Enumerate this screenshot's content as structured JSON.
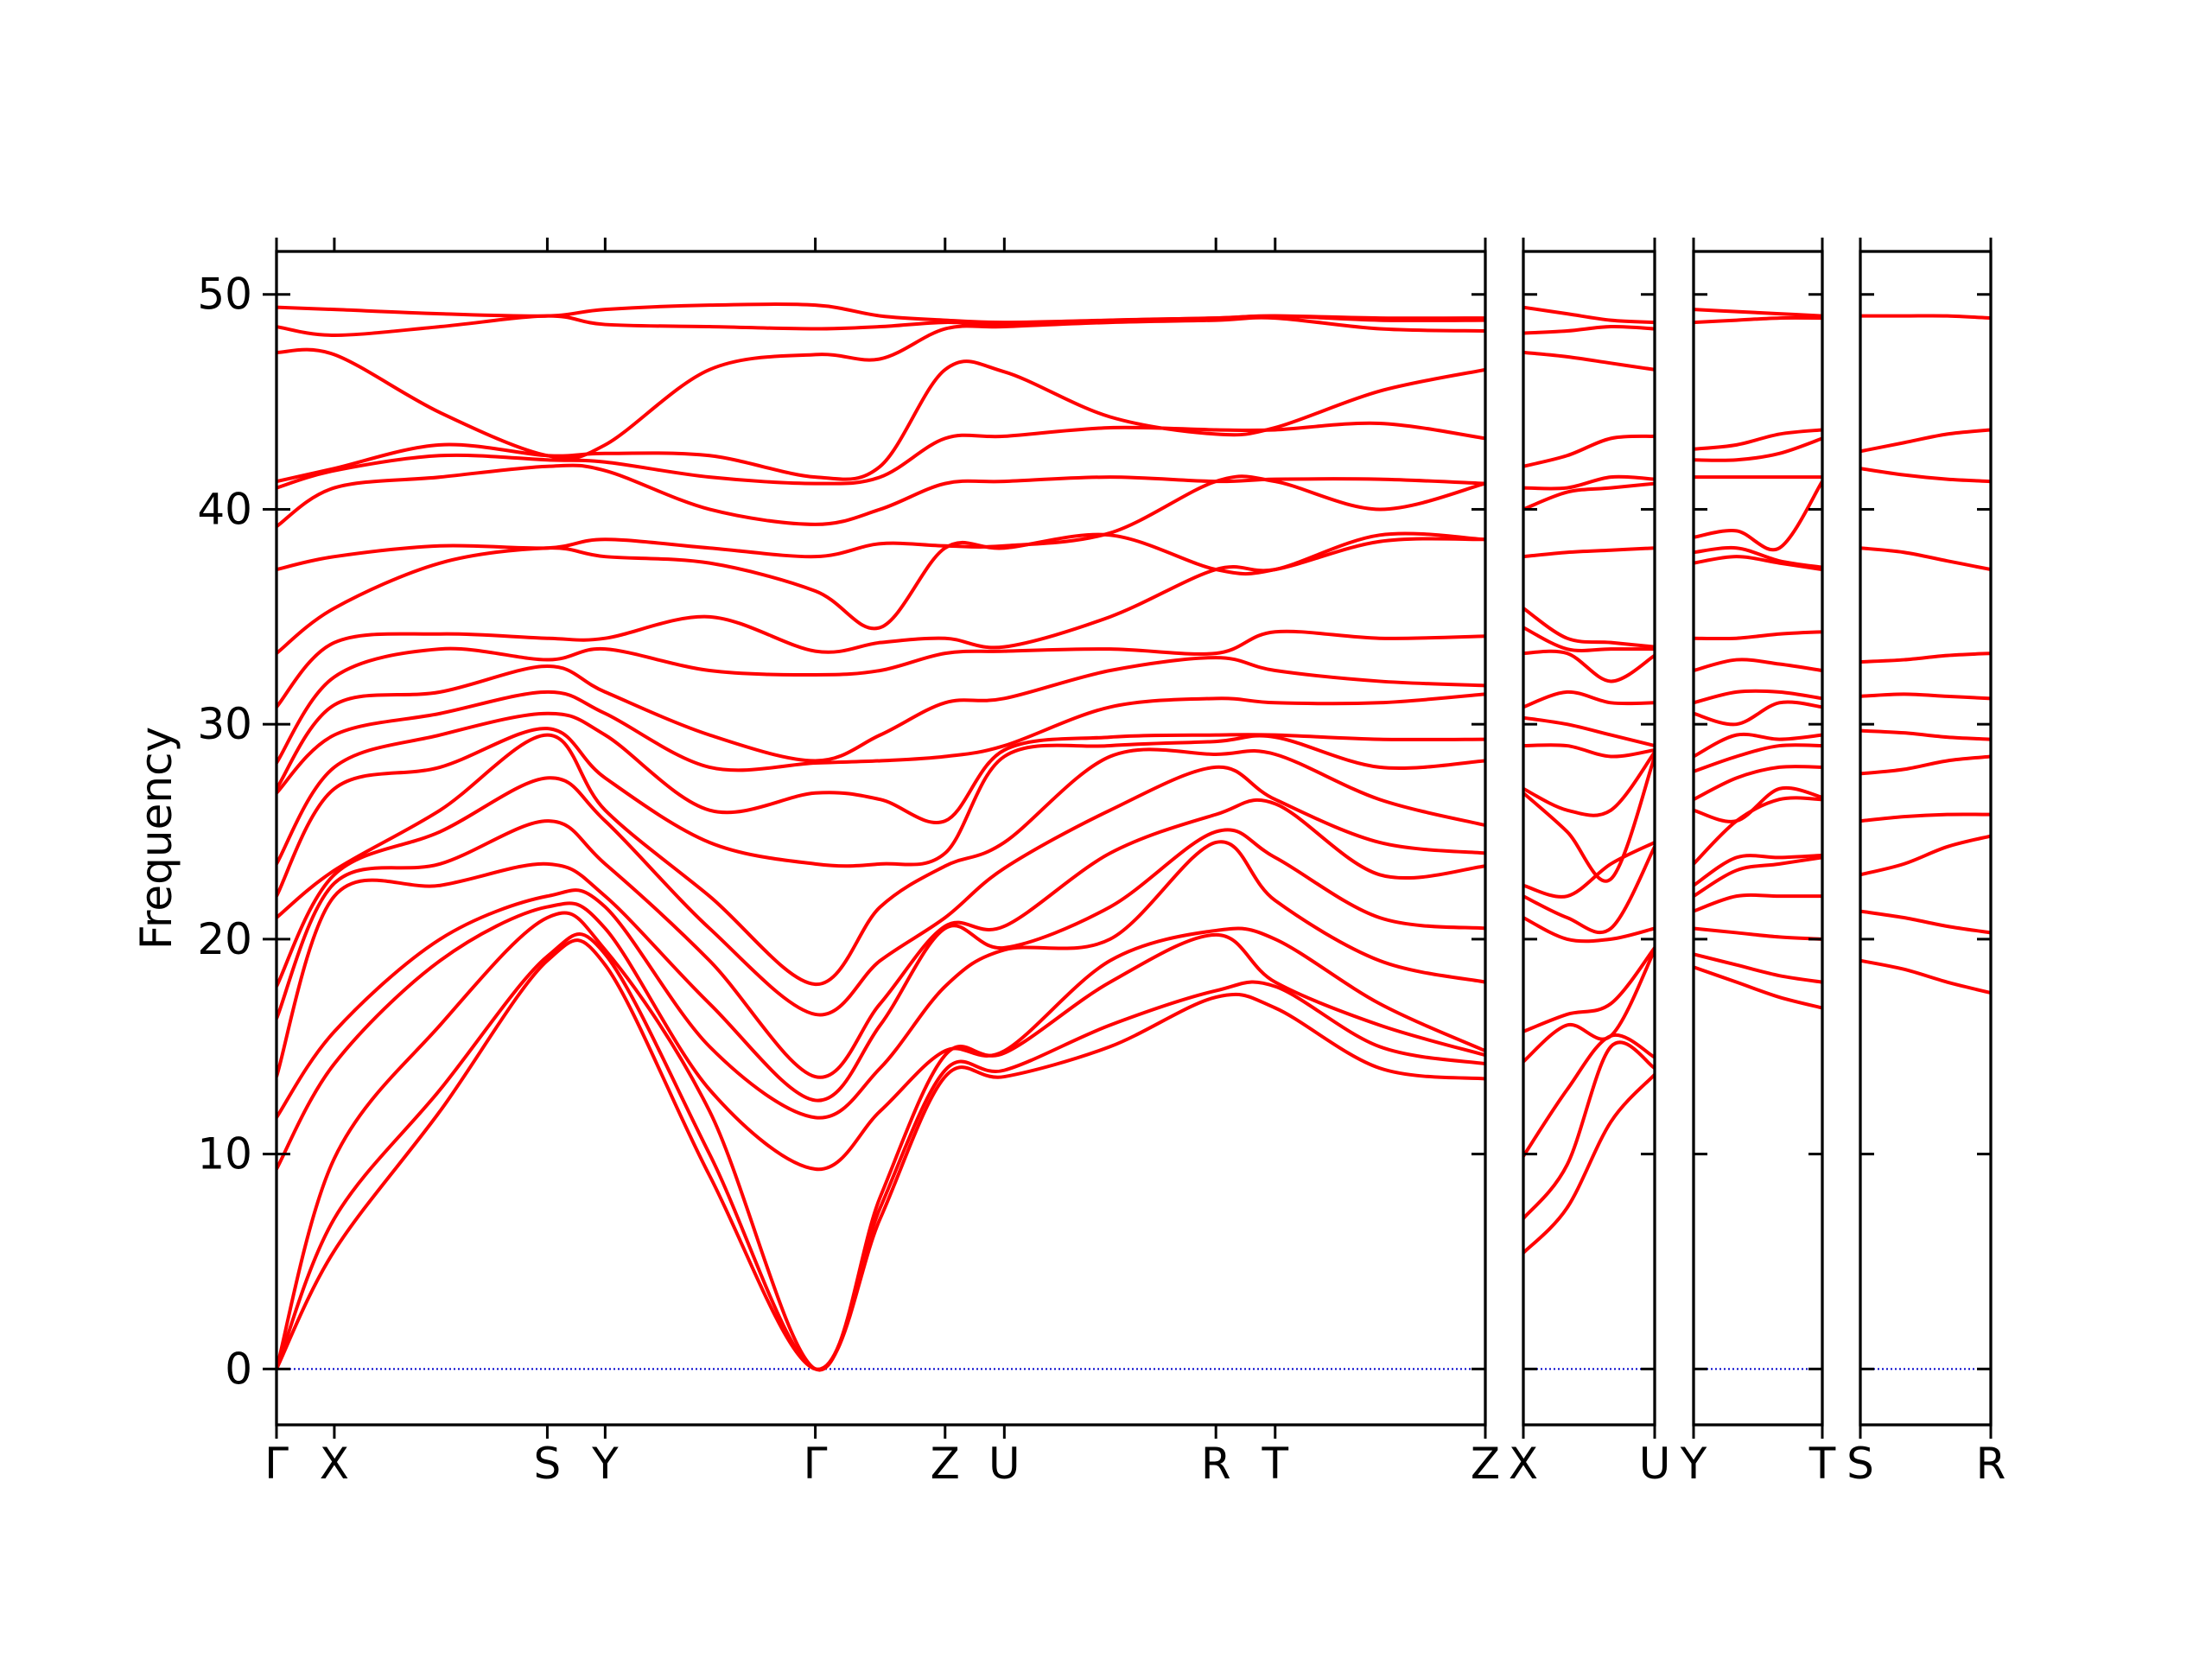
{
  "chart_data": [
    {
      "type": "line",
      "ylabel": "Frequency",
      "color": "#ff0000",
      "show_ytick_labels": true,
      "xlim": [
        0,
        8.57
      ],
      "ylim": [
        -2.6,
        52
      ],
      "yticks": [
        0,
        10,
        20,
        30,
        40,
        50
      ],
      "xticks": [
        {
          "value": 0,
          "label": "Γ"
        },
        {
          "value": 0.41,
          "label": "X"
        },
        {
          "value": 1.92,
          "label": "S"
        },
        {
          "value": 2.33,
          "label": "Y"
        },
        {
          "value": 3.82,
          "label": "Γ"
        },
        {
          "value": 4.74,
          "label": "Z"
        },
        {
          "value": 5.16,
          "label": "U"
        },
        {
          "value": 6.66,
          "label": "R"
        },
        {
          "value": 7.08,
          "label": "T"
        },
        {
          "value": 8.57,
          "label": "Z"
        }
      ],
      "hline": {
        "value": 0,
        "color": "#0000cc"
      },
      "x": [
        0,
        0.41,
        1.16,
        1.92,
        2.33,
        3.07,
        3.82,
        4.28,
        4.74,
        5.16,
        5.91,
        6.66,
        7.08,
        7.82,
        8.57
      ],
      "series": [
        {
          "values": [
            0,
            5.5,
            12,
            19,
            18.8,
            9,
            0,
            7,
            13.6,
            13.6,
            15,
            17.3,
            16.8,
            14,
            13.5
          ]
        },
        {
          "values": [
            0,
            7.0,
            13,
            19.2,
            19.3,
            10,
            0,
            7.5,
            13.9,
            13.9,
            16,
            17.6,
            17.8,
            15,
            14.2
          ]
        },
        {
          "values": [
            0,
            9.8,
            16,
            21,
            19.5,
            12,
            0,
            8,
            14.6,
            14.7,
            18,
            20.2,
            18,
            16,
            14.6
          ]
        },
        {
          "values": [
            9.3,
            14.2,
            19,
            21.5,
            20.5,
            13,
            9.3,
            12,
            14.8,
            14.8,
            19,
            20.4,
            20,
            17,
            14.8
          ]
        },
        {
          "values": [
            11.7,
            15.7,
            20,
            22,
            21.5,
            15,
            11.7,
            14,
            17.8,
            19.5,
            20,
            24.5,
            21.8,
            19,
            18
          ]
        },
        {
          "values": [
            13.6,
            22,
            22.5,
            23.5,
            22,
            17,
            12.5,
            16,
            20.5,
            19.6,
            21.5,
            25,
            23.8,
            21,
            20.5
          ]
        },
        {
          "values": [
            16.3,
            22.6,
            23.5,
            25.5,
            23.5,
            19,
            13.6,
            17,
            20.6,
            20.6,
            24,
            25.8,
            26.3,
            23,
            23.4
          ]
        },
        {
          "values": [
            17.8,
            23.0,
            25,
            27.5,
            25.5,
            20.5,
            16.5,
            19,
            21,
            23.3,
            26,
            28,
            26.5,
            24.5,
            24
          ]
        },
        {
          "values": [
            21,
            23.2,
            26,
            29.5,
            26,
            22,
            17.9,
            21.5,
            23.4,
            24.5,
            28.5,
            28.6,
            28.6,
            26.5,
            25.3
          ]
        },
        {
          "values": [
            22,
            27,
            28,
            29.8,
            27.5,
            24.5,
            23.5,
            23.5,
            24,
            28.5,
            29,
            29.2,
            29.4,
            28,
            28.3
          ]
        },
        {
          "values": [
            23.5,
            28,
            29.5,
            30.5,
            29.5,
            26,
            26.8,
            26.5,
            25.5,
            28.8,
            29.4,
            29.5,
            29.5,
            29.3,
            29.3
          ]
        },
        {
          "values": [
            26.8,
            29.5,
            30.5,
            31.5,
            30.5,
            28,
            28.2,
            28.3,
            28.5,
            29,
            30.8,
            31.2,
            31,
            31,
            31.4
          ]
        },
        {
          "values": [
            27.0,
            30.9,
            31.5,
            32.7,
            31.5,
            29.5,
            28.3,
            29.5,
            31,
            31.2,
            32.5,
            33.1,
            32.5,
            32,
            31.8
          ]
        },
        {
          "values": [
            28.2,
            32.2,
            33.5,
            33,
            33.5,
            32.5,
            32.3,
            32.5,
            33.3,
            33.4,
            33.5,
            33.3,
            34.3,
            34,
            34.1
          ]
        },
        {
          "values": [
            30.8,
            33.8,
            34.2,
            34,
            34,
            35,
            33.4,
            33.8,
            34,
            33.6,
            35,
            37.2,
            37.2,
            38.5,
            38.6
          ]
        },
        {
          "values": [
            33.3,
            35.4,
            37.5,
            38.2,
            37.8,
            37.5,
            36.2,
            34.5,
            38.2,
            38.2,
            38.8,
            37.2,
            37.2,
            38.8,
            38.6
          ]
        },
        {
          "values": [
            37.2,
            37.8,
            38.3,
            38.2,
            38.6,
            38.2,
            37.8,
            38.4,
            38.3,
            38.3,
            38.9,
            41.3,
            41.3,
            40,
            41.2
          ]
        },
        {
          "values": [
            39.2,
            41,
            41.5,
            42,
            41.8,
            40,
            39.3,
            40,
            41.2,
            41.3,
            41.5,
            41.3,
            41.4,
            41.4,
            41.2
          ]
        },
        {
          "values": [
            41,
            41.8,
            42.5,
            42.3,
            42.2,
            41.5,
            41.2,
            41.5,
            43.3,
            43.4,
            43.8,
            43.7,
            43.7,
            44,
            43.3
          ]
        },
        {
          "values": [
            41.3,
            41.9,
            43,
            42.5,
            42.6,
            42.5,
            41.5,
            42,
            46.5,
            46.4,
            44.3,
            43.5,
            43.8,
            45.5,
            46.5
          ]
        },
        {
          "values": [
            47.3,
            47.2,
            44.5,
            42.5,
            43,
            46.5,
            47.2,
            47,
            48.4,
            48.5,
            48.7,
            48.8,
            48.9,
            48.4,
            48.3
          ]
        },
        {
          "values": [
            48.5,
            48.1,
            48.5,
            49,
            48.6,
            48.5,
            48.4,
            48.5,
            48.7,
            48.6,
            48.8,
            48.9,
            49,
            48.8,
            48.8
          ]
        },
        {
          "values": [
            49.4,
            49.3,
            49.1,
            49,
            49.3,
            49.5,
            49.5,
            49,
            48.8,
            48.7,
            48.8,
            48.9,
            49,
            48.9,
            48.9
          ]
        }
      ]
    },
    {
      "type": "line",
      "color": "#ff0000",
      "show_ytick_labels": false,
      "xlim": [
        0,
        0.93
      ],
      "ylim": [
        -2.6,
        52
      ],
      "yticks": [
        0,
        10,
        20,
        30,
        40,
        50
      ],
      "xticks": [
        {
          "value": 0,
          "label": "X"
        },
        {
          "value": 0.93,
          "label": "U"
        }
      ],
      "hline": {
        "value": 0,
        "color": "#0000cc"
      },
      "x": [
        0,
        0.31,
        0.62,
        0.93
      ],
      "series": [
        {
          "values": [
            5.4,
            7.5,
            11.5,
            13.7
          ]
        },
        {
          "values": [
            7.0,
            9.5,
            15,
            14.0
          ]
        },
        {
          "values": [
            9.9,
            13,
            15.5,
            14.5
          ]
        },
        {
          "values": [
            14.3,
            16,
            15.5,
            19.5
          ]
        },
        {
          "values": [
            15.7,
            16.5,
            17,
            19.6
          ]
        },
        {
          "values": [
            21.0,
            20,
            20,
            20.5
          ]
        },
        {
          "values": [
            22.0,
            21,
            20.5,
            24.3
          ]
        },
        {
          "values": [
            22.5,
            22,
            23.5,
            24.5
          ]
        },
        {
          "values": [
            26.8,
            25,
            22.8,
            28.5
          ]
        },
        {
          "values": [
            27.0,
            26,
            26,
            28.7
          ]
        },
        {
          "values": [
            29.0,
            29,
            28.5,
            28.8
          ]
        },
        {
          "values": [
            30.3,
            30,
            29.5,
            29
          ]
        },
        {
          "values": [
            30.8,
            31.5,
            31,
            31
          ]
        },
        {
          "values": [
            33.3,
            33.3,
            32,
            33.2
          ]
        },
        {
          "values": [
            34.5,
            33.5,
            33.5,
            33.5
          ]
        },
        {
          "values": [
            35.4,
            34,
            33.8,
            33.6
          ]
        },
        {
          "values": [
            37.8,
            38,
            38.1,
            38.2
          ]
        },
        {
          "values": [
            40.0,
            40.8,
            41,
            41.2
          ]
        },
        {
          "values": [
            41.0,
            41,
            41.5,
            41.4
          ]
        },
        {
          "values": [
            42.0,
            42.5,
            43.3,
            43.4
          ]
        },
        {
          "values": [
            47.3,
            47.1,
            46.8,
            46.5
          ]
        },
        {
          "values": [
            48.2,
            48.3,
            48.5,
            48.4
          ]
        },
        {
          "values": [
            49.4,
            49.1,
            48.8,
            48.7
          ]
        }
      ]
    },
    {
      "type": "line",
      "color": "#ff0000",
      "show_ytick_labels": false,
      "xlim": [
        0,
        0.92
      ],
      "ylim": [
        -2.6,
        52
      ],
      "yticks": [
        0,
        10,
        20,
        30,
        40,
        50
      ],
      "xticks": [
        {
          "value": 0,
          "label": "Y"
        },
        {
          "value": 0.92,
          "label": "T"
        }
      ],
      "hline": {
        "value": 0,
        "color": "#0000cc"
      },
      "x": [
        0,
        0.307,
        0.613,
        0.92
      ],
      "series": [
        {
          "values": [
            18.7,
            18,
            17.3,
            16.8
          ]
        },
        {
          "values": [
            19.3,
            18.8,
            18.3,
            18.0
          ]
        },
        {
          "values": [
            20.5,
            20.3,
            20.1,
            20.0
          ]
        },
        {
          "values": [
            21.3,
            22,
            22,
            22.0
          ]
        },
        {
          "values": [
            22.0,
            23.2,
            23.5,
            23.8
          ]
        },
        {
          "values": [
            22.5,
            23.8,
            23.8,
            23.9
          ]
        },
        {
          "values": [
            23.5,
            25.5,
            26.5,
            26.5
          ]
        },
        {
          "values": [
            26.0,
            25.5,
            27,
            26.6
          ]
        },
        {
          "values": [
            26.5,
            27.5,
            28,
            28.0
          ]
        },
        {
          "values": [
            27.8,
            28.5,
            29,
            29.0
          ]
        },
        {
          "values": [
            28.5,
            29.5,
            29.3,
            29.5
          ]
        },
        {
          "values": [
            30.5,
            30,
            31,
            30.8
          ]
        },
        {
          "values": [
            31.0,
            31.5,
            31.5,
            31.2
          ]
        },
        {
          "values": [
            32.5,
            33,
            32.8,
            32.5
          ]
        },
        {
          "values": [
            34.0,
            34,
            34.2,
            34.3
          ]
        },
        {
          "values": [
            37.5,
            37.8,
            37.5,
            37.2
          ]
        },
        {
          "values": [
            38.0,
            38.2,
            37.6,
            37.3
          ]
        },
        {
          "values": [
            38.7,
            39,
            38.2,
            41.3
          ]
        },
        {
          "values": [
            41.5,
            41.5,
            41.5,
            41.5
          ]
        },
        {
          "values": [
            42.3,
            42.3,
            42.6,
            43.3
          ]
        },
        {
          "values": [
            42.8,
            43,
            43.5,
            43.7
          ]
        },
        {
          "values": [
            48.7,
            48.8,
            48.9,
            48.9
          ]
        },
        {
          "values": [
            49.3,
            49.2,
            49.1,
            49.0
          ]
        }
      ]
    },
    {
      "type": "line",
      "color": "#ff0000",
      "show_ytick_labels": false,
      "xlim": [
        0,
        0.92
      ],
      "ylim": [
        -2.6,
        52
      ],
      "yticks": [
        0,
        10,
        20,
        30,
        40,
        50
      ],
      "xticks": [
        {
          "value": 0,
          "label": "S"
        },
        {
          "value": 0.92,
          "label": "R"
        }
      ],
      "hline": {
        "value": 0,
        "color": "#0000cc"
      },
      "x": [
        0,
        0.307,
        0.613,
        0.92
      ],
      "series": [
        {
          "values": [
            19.0,
            18.6,
            18,
            17.5
          ]
        },
        {
          "values": [
            21.3,
            21,
            20.6,
            20.3
          ]
        },
        {
          "values": [
            23.0,
            23.5,
            24.3,
            24.8
          ]
        },
        {
          "values": [
            25.5,
            25.7,
            25.8,
            25.8
          ]
        },
        {
          "values": [
            27.7,
            27.9,
            28.3,
            28.5
          ]
        },
        {
          "values": [
            29.7,
            29.6,
            29.4,
            29.3
          ]
        },
        {
          "values": [
            31.3,
            31.4,
            31.3,
            31.2
          ]
        },
        {
          "values": [
            32.9,
            33,
            33.2,
            33.3
          ]
        },
        {
          "values": [
            38.2,
            38,
            37.6,
            37.2
          ]
        },
        {
          "values": [
            41.9,
            41.6,
            41.4,
            41.3
          ]
        },
        {
          "values": [
            42.7,
            43.1,
            43.5,
            43.7
          ]
        },
        {
          "values": [
            49.0,
            49,
            49,
            48.9
          ]
        }
      ]
    }
  ]
}
